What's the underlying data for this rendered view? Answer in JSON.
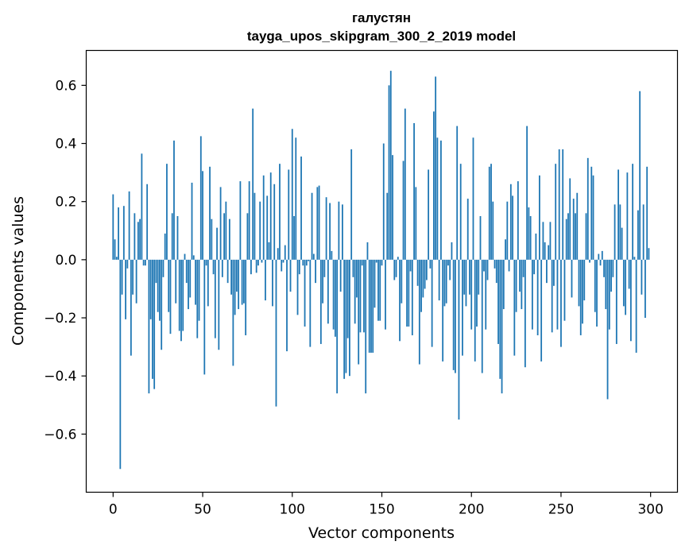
{
  "chart_data": {
    "type": "bar",
    "title_line1": "галустян",
    "title_line2": "tayga_upos_skipgram_300_2_2019 model",
    "xlabel": "Vector components",
    "ylabel": "Components values",
    "xlim": [
      -15,
      315
    ],
    "ylim": [
      -0.8,
      0.72
    ],
    "xticks": [
      0,
      50,
      100,
      150,
      200,
      250,
      300
    ],
    "yticks": [
      -0.6,
      -0.4,
      -0.2,
      0.0,
      0.2,
      0.4,
      0.6
    ],
    "ytick_labels": [
      "−0.6",
      "−0.4",
      "−0.2",
      "0.0",
      "0.2",
      "0.4",
      "0.6"
    ],
    "bar_color": "#1f77b4",
    "values": [
      0.225,
      0.07,
      0.01,
      0.18,
      -0.72,
      -0.12,
      0.185,
      -0.205,
      -0.03,
      0.235,
      -0.33,
      -0.12,
      0.16,
      -0.15,
      0.13,
      0.14,
      0.365,
      -0.02,
      -0.02,
      0.26,
      -0.46,
      -0.205,
      -0.41,
      -0.445,
      -0.08,
      -0.18,
      -0.21,
      -0.31,
      -0.06,
      0.09,
      0.33,
      -0.18,
      -0.255,
      0.16,
      0.41,
      -0.15,
      0.15,
      -0.245,
      -0.28,
      -0.245,
      0.02,
      -0.08,
      -0.17,
      -0.13,
      0.265,
      0.015,
      -0.155,
      -0.27,
      -0.21,
      0.425,
      0.305,
      -0.395,
      -0.02,
      -0.16,
      0.32,
      0.14,
      -0.05,
      -0.27,
      0.11,
      -0.31,
      0.25,
      -0.06,
      0.16,
      0.2,
      -0.08,
      0.14,
      -0.12,
      -0.365,
      -0.19,
      -0.11,
      -0.17,
      0.27,
      -0.155,
      -0.15,
      -0.26,
      0.16,
      0.27,
      -0.05,
      0.52,
      0.23,
      -0.045,
      -0.02,
      0.2,
      -0.01,
      0.29,
      -0.14,
      0.22,
      0.06,
      0.3,
      -0.16,
      0.26,
      -0.505,
      0.04,
      0.33,
      -0.04,
      -0.01,
      0.05,
      -0.315,
      0.31,
      -0.11,
      0.45,
      0.15,
      0.42,
      -0.19,
      -0.05,
      0.355,
      -0.02,
      -0.23,
      -0.02,
      -0.005,
      -0.3,
      0.23,
      0.02,
      -0.08,
      0.25,
      0.255,
      -0.29,
      -0.15,
      -0.06,
      0.215,
      -0.22,
      0.195,
      0.03,
      -0.24,
      -0.265,
      -0.46,
      0.2,
      -0.11,
      0.19,
      -0.41,
      -0.39,
      -0.27,
      -0.4,
      0.38,
      -0.06,
      -0.22,
      -0.13,
      -0.36,
      -0.25,
      -0.02,
      -0.25,
      -0.46,
      0.06,
      -0.32,
      -0.32,
      -0.32,
      -0.165,
      -0.01,
      -0.21,
      -0.21,
      -0.02,
      0.4,
      -0.24,
      0.23,
      0.6,
      0.65,
      0.36,
      -0.07,
      -0.06,
      0.01,
      -0.28,
      -0.15,
      0.34,
      0.52,
      -0.23,
      -0.23,
      -0.04,
      -0.26,
      0.47,
      0.25,
      -0.09,
      -0.36,
      -0.18,
      -0.13,
      -0.1,
      -0.07,
      0.31,
      -0.03,
      -0.3,
      0.51,
      0.63,
      0.42,
      -0.14,
      0.41,
      -0.35,
      -0.16,
      -0.15,
      -0.02,
      -0.07,
      0.06,
      -0.38,
      -0.39,
      0.46,
      -0.55,
      0.33,
      -0.33,
      -0.12,
      -0.16,
      0.21,
      -0.12,
      -0.24,
      0.42,
      -0.35,
      -0.23,
      -0.12,
      0.15,
      -0.39,
      -0.04,
      -0.24,
      -0.07,
      0.32,
      0.33,
      0.2,
      -0.03,
      -0.08,
      -0.29,
      -0.41,
      -0.46,
      -0.17,
      0.07,
      0.2,
      -0.04,
      0.26,
      0.22,
      -0.33,
      -0.18,
      0.27,
      -0.11,
      -0.17,
      -0.06,
      -0.37,
      0.46,
      0.18,
      0.15,
      -0.24,
      -0.05,
      0.09,
      -0.26,
      0.29,
      -0.35,
      0.13,
      0.06,
      -0.08,
      0.05,
      0.13,
      -0.25,
      -0.09,
      0.33,
      -0.24,
      0.38,
      -0.3,
      0.38,
      -0.21,
      0.14,
      0.16,
      0.28,
      -0.13,
      0.21,
      0.16,
      0.23,
      -0.16,
      -0.26,
      -0.22,
      -0.14,
      0.16,
      0.35,
      -0.01,
      0.32,
      0.29,
      -0.18,
      -0.23,
      0.02,
      -0.02,
      0.03,
      -0.06,
      -0.17,
      -0.48,
      -0.24,
      -0.11,
      -0.06,
      0.19,
      -0.29,
      0.31,
      0.19,
      0.11,
      -0.16,
      -0.19,
      0.3,
      -0.1,
      -0.28,
      0.33,
      0.01,
      -0.32,
      0.17,
      0.58,
      -0.12,
      0.19,
      -0.2,
      0.32,
      0.04
    ]
  }
}
